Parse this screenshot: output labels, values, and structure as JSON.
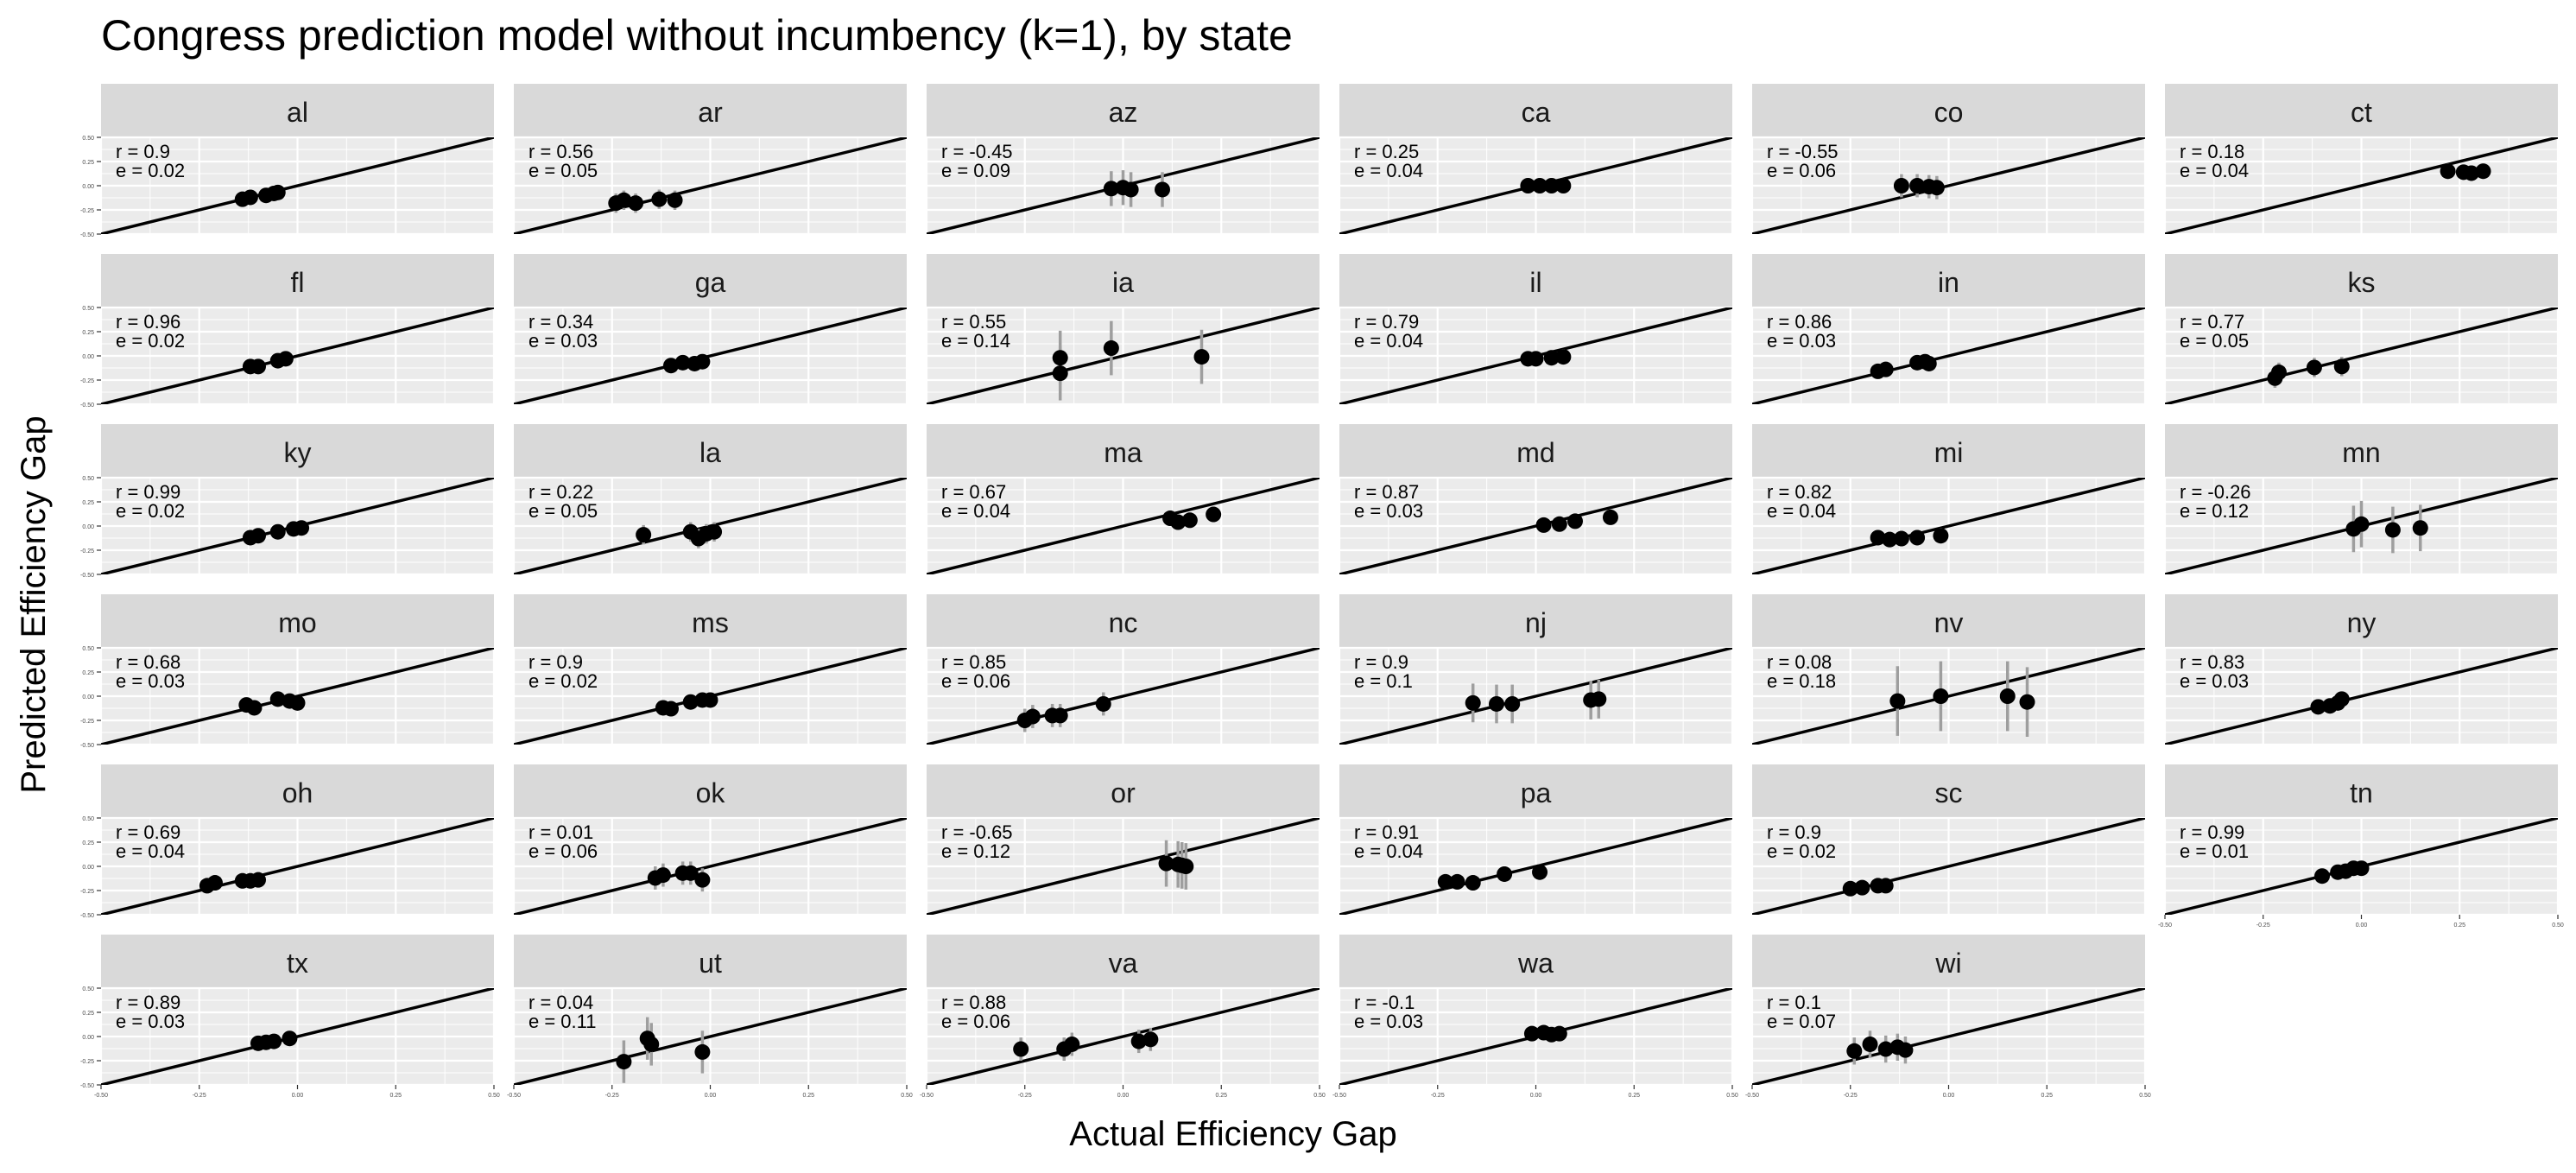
{
  "chart_data": {
    "type": "scatter",
    "title": "Congress prediction model without incumbency (k=1), by state",
    "xlabel": "Actual Efficiency Gap",
    "ylabel": "Predicted Efficiency Gap",
    "xlim": [
      -0.5,
      0.5
    ],
    "ylim": [
      -0.5,
      0.5
    ],
    "ticks": [
      "-0.50",
      "-0.25",
      "0.00",
      "0.25",
      "0.50"
    ],
    "tick_values": [
      -0.5,
      -0.25,
      0,
      0.25,
      0.5
    ],
    "reference_line": "y = x",
    "grid": true,
    "panels": [
      {
        "state": "al",
        "r_label": "r = 0.9",
        "e_label": "e = 0.02",
        "points": [
          [
            -0.14,
            -0.14,
            0.02
          ],
          [
            -0.12,
            -0.12,
            0.02
          ],
          [
            -0.08,
            -0.1,
            0.02
          ],
          [
            -0.06,
            -0.08,
            0.02
          ],
          [
            -0.05,
            -0.07,
            0.02
          ]
        ]
      },
      {
        "state": "ar",
        "r_label": "r = 0.56",
        "e_label": "e = 0.05",
        "points": [
          [
            -0.24,
            -0.18,
            0.05
          ],
          [
            -0.22,
            -0.15,
            0.05
          ],
          [
            -0.19,
            -0.18,
            0.05
          ],
          [
            -0.13,
            -0.14,
            0.05
          ],
          [
            -0.09,
            -0.15,
            0.05
          ]
        ]
      },
      {
        "state": "az",
        "r_label": "r = -0.45",
        "e_label": "e = 0.09",
        "points": [
          [
            -0.03,
            -0.03,
            0.09
          ],
          [
            0.0,
            -0.02,
            0.09
          ],
          [
            0.02,
            -0.04,
            0.09
          ],
          [
            0.1,
            -0.04,
            0.09
          ]
        ]
      },
      {
        "state": "ca",
        "r_label": "r = 0.25",
        "e_label": "e = 0.04",
        "points": [
          [
            -0.02,
            0.0,
            0.04
          ],
          [
            0.01,
            0.0,
            0.04
          ],
          [
            0.04,
            0.0,
            0.04
          ],
          [
            0.07,
            0.0,
            0.04
          ]
        ]
      },
      {
        "state": "co",
        "r_label": "r = -0.55",
        "e_label": "e = 0.06",
        "points": [
          [
            -0.12,
            0.0,
            0.06
          ],
          [
            -0.08,
            0.0,
            0.06
          ],
          [
            -0.05,
            -0.01,
            0.06
          ],
          [
            -0.03,
            -0.02,
            0.06
          ]
        ]
      },
      {
        "state": "ct",
        "r_label": "r = 0.18",
        "e_label": "e = 0.04",
        "points": [
          [
            0.22,
            0.15,
            0.04
          ],
          [
            0.26,
            0.14,
            0.04
          ],
          [
            0.28,
            0.13,
            0.04
          ],
          [
            0.31,
            0.15,
            0.04
          ]
        ]
      },
      {
        "state": "fl",
        "r_label": "r = 0.96",
        "e_label": "e = 0.02",
        "points": [
          [
            -0.12,
            -0.11,
            0.02
          ],
          [
            -0.1,
            -0.11,
            0.02
          ],
          [
            -0.05,
            -0.05,
            0.02
          ],
          [
            -0.03,
            -0.03,
            0.02
          ]
        ]
      },
      {
        "state": "ga",
        "r_label": "r = 0.34",
        "e_label": "e = 0.03",
        "points": [
          [
            -0.1,
            -0.1,
            0.03
          ],
          [
            -0.07,
            -0.07,
            0.03
          ],
          [
            -0.04,
            -0.08,
            0.03
          ],
          [
            -0.02,
            -0.06,
            0.03
          ]
        ]
      },
      {
        "state": "ia",
        "r_label": "r = 0.55",
        "e_label": "e = 0.14",
        "points": [
          [
            -0.16,
            -0.18,
            0.14
          ],
          [
            -0.16,
            -0.02,
            0.14
          ],
          [
            -0.03,
            0.08,
            0.14
          ],
          [
            0.2,
            -0.01,
            0.14
          ]
        ]
      },
      {
        "state": "il",
        "r_label": "r = 0.79",
        "e_label": "e = 0.04",
        "points": [
          [
            -0.02,
            -0.03,
            0.04
          ],
          [
            0.0,
            -0.03,
            0.04
          ],
          [
            0.04,
            -0.02,
            0.04
          ],
          [
            0.07,
            -0.01,
            0.04
          ]
        ]
      },
      {
        "state": "in",
        "r_label": "r = 0.86",
        "e_label": "e = 0.03",
        "points": [
          [
            -0.18,
            -0.16,
            0.03
          ],
          [
            -0.16,
            -0.14,
            0.03
          ],
          [
            -0.08,
            -0.07,
            0.03
          ],
          [
            -0.06,
            -0.06,
            0.03
          ],
          [
            -0.05,
            -0.08,
            0.03
          ]
        ]
      },
      {
        "state": "ks",
        "r_label": "r = 0.77",
        "e_label": "e = 0.05",
        "points": [
          [
            -0.22,
            -0.23,
            0.05
          ],
          [
            -0.21,
            -0.17,
            0.05
          ],
          [
            -0.12,
            -0.12,
            0.05
          ],
          [
            -0.05,
            -0.11,
            0.05
          ]
        ]
      },
      {
        "state": "ky",
        "r_label": "r = 0.99",
        "e_label": "e = 0.02",
        "points": [
          [
            -0.12,
            -0.12,
            0.02
          ],
          [
            -0.1,
            -0.1,
            0.02
          ],
          [
            -0.05,
            -0.06,
            0.02
          ],
          [
            -0.01,
            -0.03,
            0.02
          ],
          [
            0.01,
            -0.02,
            0.02
          ]
        ]
      },
      {
        "state": "la",
        "r_label": "r = 0.22",
        "e_label": "e = 0.05",
        "points": [
          [
            -0.17,
            -0.09,
            0.05
          ],
          [
            -0.05,
            -0.06,
            0.05
          ],
          [
            -0.03,
            -0.13,
            0.05
          ],
          [
            -0.01,
            -0.08,
            0.05
          ],
          [
            0.01,
            -0.06,
            0.05
          ]
        ]
      },
      {
        "state": "ma",
        "r_label": "r = 0.67",
        "e_label": "e = 0.04",
        "points": [
          [
            0.12,
            0.08,
            0.04
          ],
          [
            0.14,
            0.04,
            0.04
          ],
          [
            0.17,
            0.06,
            0.04
          ],
          [
            0.23,
            0.12,
            0.04
          ]
        ]
      },
      {
        "state": "md",
        "r_label": "r = 0.87",
        "e_label": "e = 0.03",
        "points": [
          [
            0.02,
            0.01,
            0.03
          ],
          [
            0.06,
            0.02,
            0.03
          ],
          [
            0.1,
            0.05,
            0.03
          ],
          [
            0.19,
            0.09,
            0.03
          ]
        ]
      },
      {
        "state": "mi",
        "r_label": "r = 0.82",
        "e_label": "e = 0.04",
        "points": [
          [
            -0.18,
            -0.12,
            0.04
          ],
          [
            -0.15,
            -0.14,
            0.04
          ],
          [
            -0.12,
            -0.13,
            0.04
          ],
          [
            -0.08,
            -0.12,
            0.04
          ],
          [
            -0.02,
            -0.1,
            0.04
          ]
        ]
      },
      {
        "state": "mn",
        "r_label": "r = -0.26",
        "e_label": "e = 0.12",
        "points": [
          [
            -0.02,
            -0.03,
            0.12
          ],
          [
            0.0,
            0.02,
            0.12
          ],
          [
            0.08,
            -0.04,
            0.12
          ],
          [
            0.15,
            -0.02,
            0.12
          ]
        ]
      },
      {
        "state": "mo",
        "r_label": "r = 0.68",
        "e_label": "e = 0.03",
        "points": [
          [
            -0.13,
            -0.09,
            0.03
          ],
          [
            -0.11,
            -0.12,
            0.03
          ],
          [
            -0.05,
            -0.03,
            0.03
          ],
          [
            -0.02,
            -0.05,
            0.03
          ],
          [
            0.0,
            -0.07,
            0.03
          ]
        ]
      },
      {
        "state": "ms",
        "r_label": "r = 0.9",
        "e_label": "e = 0.02",
        "points": [
          [
            -0.12,
            -0.12,
            0.02
          ],
          [
            -0.1,
            -0.13,
            0.02
          ],
          [
            -0.05,
            -0.06,
            0.02
          ],
          [
            -0.02,
            -0.04,
            0.02
          ],
          [
            0.0,
            -0.04,
            0.02
          ]
        ]
      },
      {
        "state": "nc",
        "r_label": "r = 0.85",
        "e_label": "e = 0.06",
        "points": [
          [
            -0.25,
            -0.25,
            0.06
          ],
          [
            -0.23,
            -0.21,
            0.06
          ],
          [
            -0.18,
            -0.2,
            0.06
          ],
          [
            -0.16,
            -0.2,
            0.06
          ],
          [
            -0.05,
            -0.08,
            0.06
          ]
        ]
      },
      {
        "state": "nj",
        "r_label": "r = 0.9",
        "e_label": "e = 0.1",
        "points": [
          [
            -0.16,
            -0.07,
            0.1
          ],
          [
            -0.1,
            -0.08,
            0.1
          ],
          [
            -0.06,
            -0.08,
            0.1
          ],
          [
            0.14,
            -0.04,
            0.1
          ],
          [
            0.16,
            -0.03,
            0.1
          ]
        ]
      },
      {
        "state": "nv",
        "r_label": "r = 0.08",
        "e_label": "e = 0.18",
        "points": [
          [
            -0.13,
            -0.05,
            0.18
          ],
          [
            -0.02,
            0.0,
            0.18
          ],
          [
            0.15,
            0.0,
            0.18
          ],
          [
            0.2,
            -0.06,
            0.18
          ]
        ]
      },
      {
        "state": "ny",
        "r_label": "r = 0.83",
        "e_label": "e = 0.03",
        "points": [
          [
            -0.11,
            -0.11,
            0.03
          ],
          [
            -0.08,
            -0.1,
            0.03
          ],
          [
            -0.06,
            -0.07,
            0.03
          ],
          [
            -0.05,
            -0.03,
            0.03
          ]
        ]
      },
      {
        "state": "oh",
        "r_label": "r = 0.69",
        "e_label": "e = 0.04",
        "points": [
          [
            -0.23,
            -0.2,
            0.04
          ],
          [
            -0.21,
            -0.17,
            0.04
          ],
          [
            -0.14,
            -0.15,
            0.04
          ],
          [
            -0.12,
            -0.15,
            0.04
          ],
          [
            -0.1,
            -0.14,
            0.04
          ]
        ]
      },
      {
        "state": "ok",
        "r_label": "r = 0.01",
        "e_label": "e = 0.06",
        "points": [
          [
            -0.14,
            -0.12,
            0.06
          ],
          [
            -0.12,
            -0.09,
            0.06
          ],
          [
            -0.07,
            -0.07,
            0.06
          ],
          [
            -0.05,
            -0.07,
            0.06
          ],
          [
            -0.02,
            -0.14,
            0.06
          ]
        ]
      },
      {
        "state": "or",
        "r_label": "r = -0.65",
        "e_label": "e = 0.12",
        "points": [
          [
            0.11,
            0.03,
            0.12
          ],
          [
            0.14,
            0.02,
            0.12
          ],
          [
            0.15,
            0.01,
            0.12
          ],
          [
            0.16,
            0.0,
            0.12
          ]
        ]
      },
      {
        "state": "pa",
        "r_label": "r = 0.91",
        "e_label": "e = 0.04",
        "points": [
          [
            -0.23,
            -0.16,
            0.04
          ],
          [
            -0.2,
            -0.16,
            0.04
          ],
          [
            -0.16,
            -0.17,
            0.04
          ],
          [
            -0.08,
            -0.08,
            0.04
          ],
          [
            0.01,
            -0.06,
            0.04
          ]
        ]
      },
      {
        "state": "sc",
        "r_label": "r = 0.9",
        "e_label": "e = 0.02",
        "points": [
          [
            -0.25,
            -0.23,
            0.02
          ],
          [
            -0.22,
            -0.22,
            0.02
          ],
          [
            -0.18,
            -0.2,
            0.02
          ],
          [
            -0.16,
            -0.2,
            0.02
          ]
        ]
      },
      {
        "state": "tn",
        "r_label": "r = 0.99",
        "e_label": "e = 0.01",
        "points": [
          [
            -0.1,
            -0.1,
            0.01
          ],
          [
            -0.06,
            -0.06,
            0.01
          ],
          [
            -0.04,
            -0.05,
            0.01
          ],
          [
            -0.02,
            -0.02,
            0.01
          ],
          [
            0.0,
            -0.02,
            0.01
          ]
        ]
      },
      {
        "state": "tx",
        "r_label": "r = 0.89",
        "e_label": "e = 0.03",
        "points": [
          [
            -0.1,
            -0.07,
            0.03
          ],
          [
            -0.08,
            -0.06,
            0.03
          ],
          [
            -0.06,
            -0.05,
            0.03
          ],
          [
            -0.02,
            -0.02,
            0.03
          ]
        ]
      },
      {
        "state": "ut",
        "r_label": "r = 0.04",
        "e_label": "e = 0.11",
        "points": [
          [
            -0.22,
            -0.26,
            0.11
          ],
          [
            -0.16,
            -0.02,
            0.11
          ],
          [
            -0.15,
            -0.08,
            0.11
          ],
          [
            -0.02,
            -0.16,
            0.11
          ]
        ]
      },
      {
        "state": "va",
        "r_label": "r = 0.88",
        "e_label": "e = 0.06",
        "points": [
          [
            -0.26,
            -0.13,
            0.06
          ],
          [
            -0.15,
            -0.13,
            0.06
          ],
          [
            -0.13,
            -0.08,
            0.06
          ],
          [
            0.04,
            -0.05,
            0.06
          ],
          [
            0.07,
            -0.03,
            0.06
          ]
        ]
      },
      {
        "state": "wa",
        "r_label": "r = -0.1",
        "e_label": "e = 0.03",
        "points": [
          [
            -0.01,
            0.03,
            0.03
          ],
          [
            0.02,
            0.04,
            0.03
          ],
          [
            0.04,
            0.02,
            0.03
          ],
          [
            0.06,
            0.03,
            0.03
          ]
        ]
      },
      {
        "state": "wi",
        "r_label": "r = 0.1",
        "e_label": "e = 0.07",
        "points": [
          [
            -0.24,
            -0.15,
            0.07
          ],
          [
            -0.2,
            -0.08,
            0.07
          ],
          [
            -0.16,
            -0.13,
            0.07
          ],
          [
            -0.13,
            -0.11,
            0.07
          ],
          [
            -0.11,
            -0.14,
            0.07
          ]
        ]
      }
    ]
  }
}
